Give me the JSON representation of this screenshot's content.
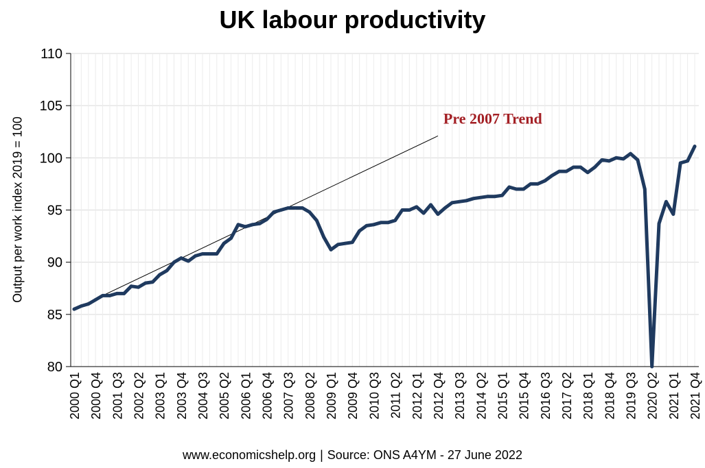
{
  "footer": {
    "website": "www.economicshelp.org",
    "source": "Source:  ONS A4YM - 27 June 2022"
  },
  "chart_data": {
    "type": "line",
    "title": "UK labour productivity",
    "ylabel": "Output per work index 2019 = 100",
    "xlabel": "",
    "ylim": [
      80,
      110
    ],
    "yticks": [
      80,
      85,
      90,
      95,
      100,
      105,
      110
    ],
    "grid": true,
    "legend": "none",
    "x_tick_labels": [
      "2000 Q1",
      "2000 Q4",
      "2001 Q3",
      "2002 Q2",
      "2003 Q1",
      "2003 Q4",
      "2004 Q3",
      "2005 Q2",
      "2006 Q1",
      "2006 Q4",
      "2007 Q3",
      "2008 Q2",
      "2009 Q1",
      "2009 Q4",
      "2010 Q3",
      "2011 Q2",
      "2012 Q1",
      "2012 Q4",
      "2013 Q3",
      "2014 Q2",
      "2015 Q1",
      "2015 Q4",
      "2016 Q3",
      "2017 Q2",
      "2018 Q1",
      "2018 Q4",
      "2019 Q3",
      "2020 Q2",
      "2021 Q1",
      "2021 Q4"
    ],
    "x": [
      "2000 Q1",
      "2000 Q2",
      "2000 Q3",
      "2000 Q4",
      "2001 Q1",
      "2001 Q2",
      "2001 Q3",
      "2001 Q4",
      "2002 Q1",
      "2002 Q2",
      "2002 Q3",
      "2002 Q4",
      "2003 Q1",
      "2003 Q2",
      "2003 Q3",
      "2003 Q4",
      "2004 Q1",
      "2004 Q2",
      "2004 Q3",
      "2004 Q4",
      "2005 Q1",
      "2005 Q2",
      "2005 Q3",
      "2005 Q4",
      "2006 Q1",
      "2006 Q2",
      "2006 Q3",
      "2006 Q4",
      "2007 Q1",
      "2007 Q2",
      "2007 Q3",
      "2007 Q4",
      "2008 Q1",
      "2008 Q2",
      "2008 Q3",
      "2008 Q4",
      "2009 Q1",
      "2009 Q2",
      "2009 Q3",
      "2009 Q4",
      "2010 Q1",
      "2010 Q2",
      "2010 Q3",
      "2010 Q4",
      "2011 Q1",
      "2011 Q2",
      "2011 Q3",
      "2011 Q4",
      "2012 Q1",
      "2012 Q2",
      "2012 Q3",
      "2012 Q4",
      "2013 Q1",
      "2013 Q2",
      "2013 Q3",
      "2013 Q4",
      "2014 Q1",
      "2014 Q2",
      "2014 Q3",
      "2014 Q4",
      "2015 Q1",
      "2015 Q2",
      "2015 Q3",
      "2015 Q4",
      "2016 Q1",
      "2016 Q2",
      "2016 Q3",
      "2016 Q4",
      "2017 Q1",
      "2017 Q2",
      "2017 Q3",
      "2017 Q4",
      "2018 Q1",
      "2018 Q2",
      "2018 Q3",
      "2018 Q4",
      "2019 Q1",
      "2019 Q2",
      "2019 Q3",
      "2019 Q4",
      "2020 Q1",
      "2020 Q2",
      "2020 Q3",
      "2020 Q4",
      "2021 Q1",
      "2021 Q2",
      "2021 Q3",
      "2021 Q4"
    ],
    "series": [
      {
        "color": "#1f3a5f",
        "values": [
          85.5,
          85.8,
          86.0,
          86.4,
          86.8,
          86.8,
          87.0,
          87.0,
          87.7,
          87.6,
          88.0,
          88.1,
          88.8,
          89.2,
          90.0,
          90.4,
          90.1,
          90.6,
          90.8,
          90.8,
          90.8,
          91.8,
          92.3,
          93.6,
          93.4,
          93.6,
          93.7,
          94.1,
          94.8,
          95.0,
          95.2,
          95.2,
          95.2,
          94.8,
          94.0,
          92.4,
          91.2,
          91.7,
          91.8,
          91.9,
          93.0,
          93.5,
          93.6,
          93.8,
          93.8,
          94.0,
          95.0,
          95.0,
          95.3,
          94.7,
          95.5,
          94.6,
          95.2,
          95.7,
          95.8,
          95.9,
          96.1,
          96.2,
          96.3,
          96.3,
          96.4,
          97.2,
          97.0,
          97.0,
          97.5,
          97.5,
          97.8,
          98.3,
          98.7,
          98.7,
          99.1,
          99.1,
          98.6,
          99.1,
          99.8,
          99.7,
          100.0,
          99.9,
          100.4,
          99.8,
          97.0,
          80.0,
          93.7,
          95.8,
          94.6,
          99.5,
          99.7,
          101.1
        ]
      }
    ],
    "annotations": [
      {
        "text": "Pre 2007 Trend",
        "color": "#a31f24",
        "line_start": {
          "x": "2000 Q1",
          "y": 85.5
        },
        "line_end": {
          "x": "2012 Q4",
          "y": 102.1
        }
      }
    ]
  }
}
